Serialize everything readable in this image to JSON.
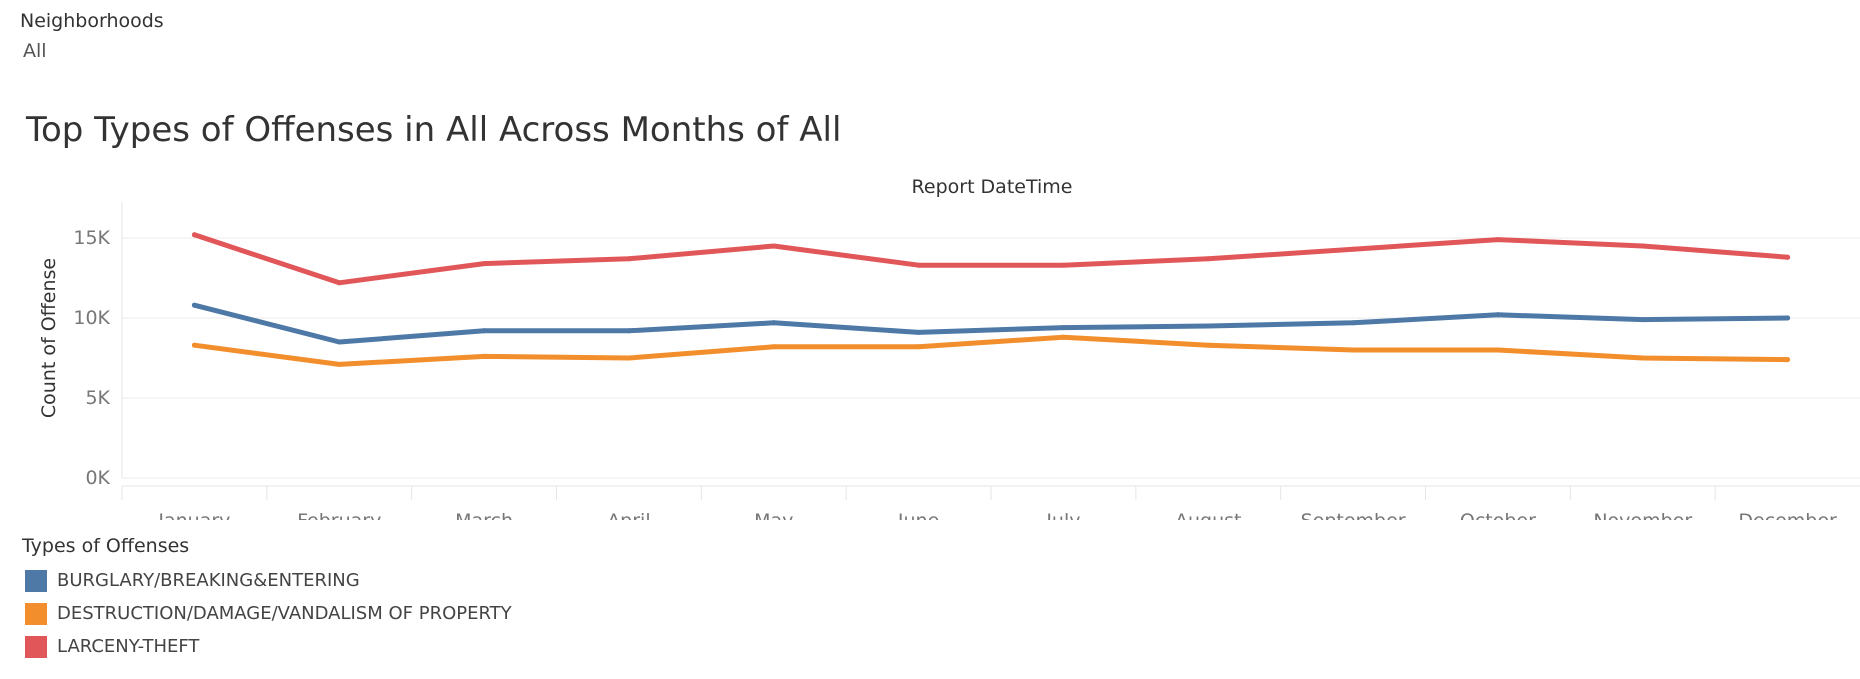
{
  "filter": {
    "label": "Neighborhoods",
    "value": "All"
  },
  "chart_data": {
    "type": "line",
    "title": "Top Types of Offenses in All Across Months of All",
    "xlabel": "Report DateTime",
    "ylabel": "Count of Offense",
    "categories": [
      "January",
      "February",
      "March",
      "April",
      "May",
      "June",
      "July",
      "August",
      "September",
      "October",
      "November",
      "December"
    ],
    "ylim": [
      0,
      16000
    ],
    "yticks": [
      0,
      5000,
      10000,
      15000
    ],
    "ytick_labels": [
      "0K",
      "5K",
      "10K",
      "15K"
    ],
    "grid": true,
    "legend_title": "Types of Offenses",
    "legend_position": "bottom-left",
    "series": [
      {
        "name": "BURGLARY/BREAKING&ENTERING",
        "color": "#4e79a7",
        "values": [
          10800,
          8500,
          9200,
          9200,
          9700,
          9100,
          9400,
          9500,
          9700,
          10200,
          9900,
          10000
        ]
      },
      {
        "name": "DESTRUCTION/DAMAGE/VANDALISM OF PROPERTY",
        "color": "#f28e2b",
        "values": [
          8300,
          7100,
          7600,
          7500,
          8200,
          8200,
          8800,
          8300,
          8000,
          8000,
          7500,
          7400
        ]
      },
      {
        "name": "LARCENY-THEFT",
        "color": "#e15759",
        "values": [
          15200,
          12200,
          13400,
          13700,
          14500,
          13300,
          13300,
          13700,
          14300,
          14900,
          14500,
          13800
        ]
      }
    ]
  }
}
